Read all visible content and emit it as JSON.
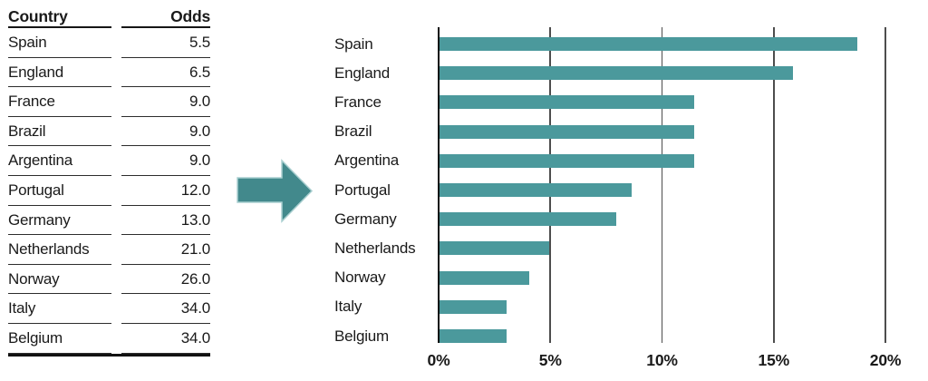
{
  "table": {
    "headers": {
      "country": "Country",
      "odds": "Odds"
    },
    "rows": [
      {
        "country": "Spain",
        "odds": "5.5"
      },
      {
        "country": "England",
        "odds": "6.5"
      },
      {
        "country": "France",
        "odds": "9.0"
      },
      {
        "country": "Brazil",
        "odds": "9.0"
      },
      {
        "country": "Argentina",
        "odds": "9.0"
      },
      {
        "country": "Portugal",
        "odds": "12.0"
      },
      {
        "country": "Germany",
        "odds": "13.0"
      },
      {
        "country": "Netherlands",
        "odds": "21.0"
      },
      {
        "country": "Norway",
        "odds": "26.0"
      },
      {
        "country": "Italy",
        "odds": "34.0"
      },
      {
        "country": "Belgium",
        "odds": "34.0"
      }
    ]
  },
  "arrow": {
    "icon": "right-arrow-icon",
    "color": "#42898c",
    "outline_color": "#a9cfd0"
  },
  "chart_data": {
    "type": "bar",
    "orientation": "horizontal",
    "categories": [
      "Spain",
      "England",
      "France",
      "Brazil",
      "Argentina",
      "Portugal",
      "Germany",
      "Netherlands",
      "Norway",
      "Italy",
      "Belgium"
    ],
    "values": [
      18.7,
      15.8,
      11.4,
      11.4,
      11.4,
      8.6,
      7.9,
      4.9,
      4.0,
      3.0,
      3.0
    ],
    "value_unit": "%",
    "xlim": [
      0,
      20
    ],
    "x_ticks": [
      {
        "value": 0,
        "label": "0%"
      },
      {
        "value": 5,
        "label": "5%"
      },
      {
        "value": 10,
        "label": "10%"
      },
      {
        "value": 15,
        "label": "15%"
      },
      {
        "value": 20,
        "label": "20%"
      }
    ],
    "title": "",
    "xlabel": "",
    "ylabel": "",
    "grid": true,
    "legend": false,
    "bar_color": "#4b999c",
    "gridline_color": "#4d4d4d",
    "axis_color": "#111111"
  }
}
